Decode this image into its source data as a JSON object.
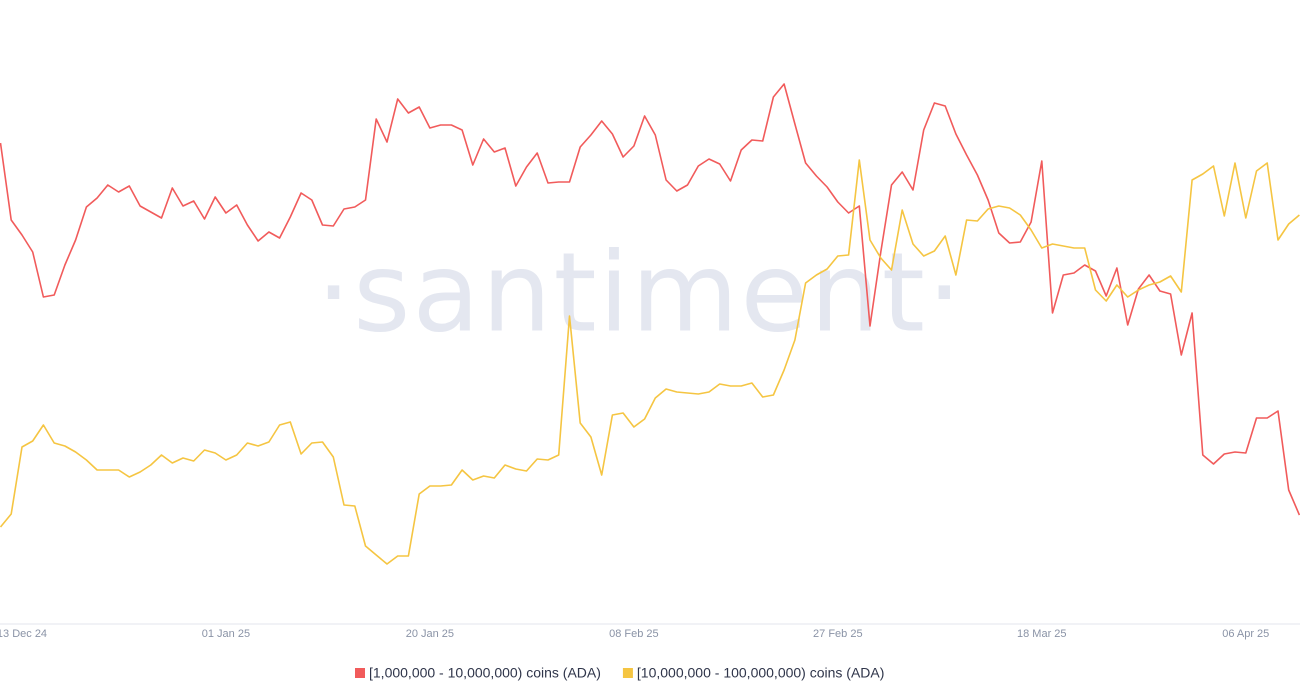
{
  "chart_data": {
    "type": "line",
    "watermark": "·santiment·",
    "categories": [
      null,
      null,
      "13 Dec 24",
      null,
      null,
      null,
      null,
      null,
      null,
      null,
      null,
      null,
      null,
      null,
      null,
      null,
      null,
      null,
      null,
      null,
      null,
      "01 Jan 25",
      null,
      null,
      null,
      null,
      null,
      null,
      null,
      null,
      null,
      null,
      null,
      null,
      null,
      null,
      null,
      null,
      null,
      null,
      "20 Jan 25",
      null,
      null,
      null,
      null,
      null,
      null,
      null,
      null,
      null,
      null,
      null,
      null,
      null,
      null,
      null,
      null,
      null,
      null,
      "08 Feb 25",
      null,
      null,
      null,
      null,
      null,
      null,
      null,
      null,
      null,
      null,
      null,
      null,
      null,
      null,
      null,
      null,
      null,
      null,
      "27 Feb 25",
      null,
      null,
      null,
      null,
      null,
      null,
      null,
      null,
      null,
      null,
      null,
      null,
      null,
      null,
      null,
      null,
      null,
      null,
      "18 Mar 25",
      null,
      null,
      null,
      null,
      null,
      null,
      null,
      null,
      null,
      null,
      null,
      null,
      null,
      null,
      null,
      null,
      null,
      null,
      "06 Apr 25",
      null,
      null,
      null,
      null,
      null
    ],
    "series": [
      {
        "name": "[1,000,000 - 10,000,000) coins (ADA)",
        "color": "#f15b5b",
        "values": [
          477,
          400,
          385,
          368,
          323,
          325,
          355,
          380,
          413,
          422,
          435,
          428,
          434,
          414,
          408,
          402,
          432,
          414,
          419,
          401,
          423,
          407,
          415,
          395,
          379,
          388,
          382,
          403,
          427,
          420,
          395,
          394,
          411,
          413,
          420,
          501,
          478,
          521,
          507,
          513,
          492,
          495,
          495,
          490,
          455,
          481,
          468,
          472,
          434,
          453,
          467,
          437,
          438,
          438,
          473,
          485,
          499,
          486,
          463,
          474,
          504,
          485,
          440,
          429,
          435,
          454,
          461,
          456,
          439,
          470,
          480,
          479,
          523,
          536,
          496,
          457,
          444,
          433,
          418,
          407,
          414,
          294,
          368,
          435,
          448,
          430,
          490,
          517,
          514,
          486,
          465,
          445,
          420,
          387,
          377,
          378,
          398,
          459,
          307,
          345,
          347,
          355,
          349,
          324,
          352,
          295,
          331,
          345,
          329,
          326,
          265,
          307,
          165,
          156,
          166,
          168,
          167,
          202,
          202,
          209,
          130,
          105
        ]
      },
      {
        "name": "[10,000,000 - 100,000,000) coins (ADA)",
        "color": "#f5c542",
        "values": [
          93,
          106,
          173,
          179,
          195,
          177,
          174,
          168,
          160,
          150,
          150,
          150,
          143,
          148,
          155,
          165,
          157,
          162,
          159,
          170,
          167,
          160,
          165,
          177,
          174,
          178,
          195,
          198,
          166,
          177,
          178,
          163,
          115,
          114,
          74,
          65,
          56,
          64,
          64,
          126,
          134,
          134,
          135,
          150,
          140,
          144,
          142,
          155,
          151,
          149,
          161,
          160,
          165,
          304,
          197,
          183,
          145,
          205,
          207,
          193,
          201,
          222,
          231,
          228,
          227,
          226,
          228,
          236,
          234,
          234,
          237,
          223,
          225,
          250,
          280,
          337,
          345,
          351,
          364,
          365,
          460,
          380,
          362,
          350,
          410,
          376,
          364,
          369,
          384,
          345,
          400,
          399,
          411,
          414,
          412,
          405,
          390,
          372,
          376,
          374,
          372,
          372,
          330,
          319,
          335,
          323,
          330,
          335,
          338,
          344,
          328,
          440,
          446,
          454,
          404,
          457,
          402,
          449,
          457,
          380,
          396,
          405
        ]
      }
    ]
  }
}
